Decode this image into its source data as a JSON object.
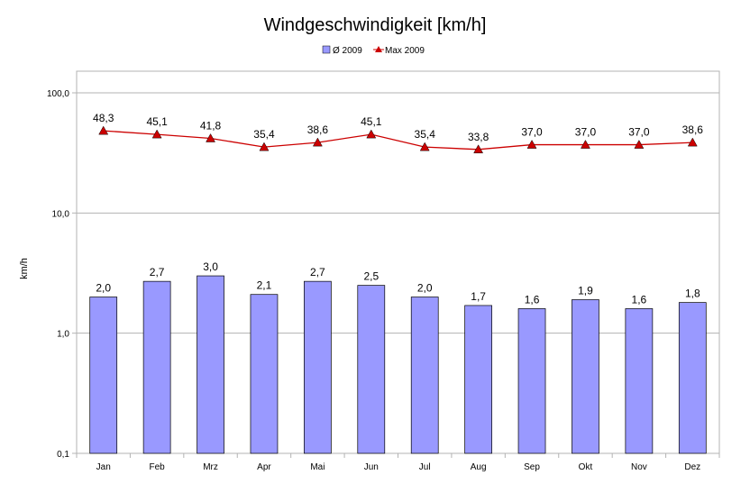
{
  "chart_data": {
    "type": "bar",
    "title": "Windgeschwindigkeit [km/h]",
    "ylabel": "km/h",
    "xlabel": "",
    "yscale": "log",
    "ylim": [
      0.1,
      100
    ],
    "yticks": [
      "0,1",
      "1,0",
      "10,0",
      "100,0"
    ],
    "grid": true,
    "legend_position": "top-center",
    "categories": [
      "Jan",
      "Feb",
      "Mrz",
      "Apr",
      "Mai",
      "Jun",
      "Jul",
      "Aug",
      "Sep",
      "Okt",
      "Nov",
      "Dez"
    ],
    "series": [
      {
        "name": "Ø 2009",
        "kind": "bar",
        "color": "#9999ff",
        "values": [
          2.0,
          2.7,
          3.0,
          2.1,
          2.7,
          2.5,
          2.0,
          1.7,
          1.6,
          1.9,
          1.6,
          1.8
        ],
        "labels": [
          "2,0",
          "2,7",
          "3,0",
          "2,1",
          "2,7",
          "2,5",
          "2,0",
          "1,7",
          "1,6",
          "1,9",
          "1,6",
          "1,8"
        ]
      },
      {
        "name": "Max 2009",
        "kind": "line",
        "color": "#cc0000",
        "marker": "triangle",
        "values": [
          48.3,
          45.1,
          41.8,
          35.4,
          38.6,
          45.1,
          35.4,
          33.8,
          37.0,
          37.0,
          37.0,
          38.6
        ],
        "labels": [
          "48,3",
          "45,1",
          "41,8",
          "35,4",
          "38,6",
          "45,1",
          "35,4",
          "33,8",
          "37,0",
          "37,0",
          "37,0",
          "38,6"
        ]
      }
    ]
  }
}
